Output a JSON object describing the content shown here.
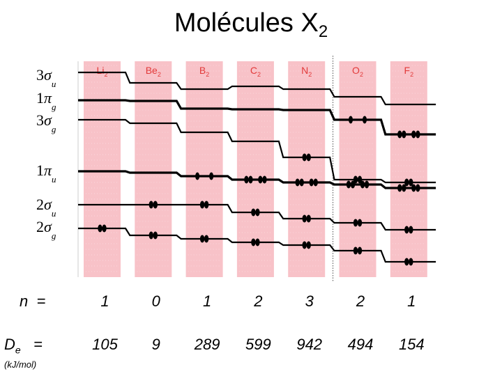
{
  "title": {
    "text": "Molécules X",
    "subscript": "2"
  },
  "molecules": [
    {
      "label": "Li",
      "sub": "2",
      "n": "1",
      "De": "105",
      "occ": {
        "2sg": 2,
        "2su": 0,
        "1pu": 0,
        "3sg": 0,
        "1pg": 0,
        "3su": 0
      }
    },
    {
      "label": "Be",
      "sub": "2",
      "n": "0",
      "De": "9",
      "occ": {
        "2sg": 2,
        "2su": 2,
        "1pu": 0,
        "3sg": 0,
        "1pg": 0,
        "3su": 0
      }
    },
    {
      "label": "B",
      "sub": "2",
      "n": "1",
      "De": "289",
      "occ": {
        "2sg": 2,
        "2su": 2,
        "1pu": 2,
        "3sg": 0,
        "1pg": 0,
        "3su": 0
      }
    },
    {
      "label": "C",
      "sub": "2",
      "n": "2",
      "De": "599",
      "occ": {
        "2sg": 2,
        "2su": 2,
        "1pu": 4,
        "3sg": 0,
        "1pg": 0,
        "3su": 0
      }
    },
    {
      "label": "N",
      "sub": "2",
      "n": "3",
      "De": "942",
      "occ": {
        "2sg": 2,
        "2su": 2,
        "1pu": 4,
        "3sg": 2,
        "1pg": 0,
        "3su": 0
      }
    },
    {
      "label": "O",
      "sub": "2",
      "n": "2",
      "De": "494",
      "occ": {
        "2sg": 2,
        "2su": 2,
        "1pu": 4,
        "3sg": 2,
        "1pg": 2,
        "3su": 0
      }
    },
    {
      "label": "F",
      "sub": "2",
      "n": "1",
      "De": "154",
      "occ": {
        "2sg": 2,
        "2su": 2,
        "1pu": 4,
        "3sg": 2,
        "1pg": 4,
        "3su": 0
      }
    }
  ],
  "orbital_labels": [
    {
      "id": "3su",
      "num": "3",
      "sym": "σ",
      "sub": "u"
    },
    {
      "id": "1pg",
      "num": "1",
      "sym": "π",
      "sub": "g"
    },
    {
      "id": "3sg",
      "num": "3",
      "sym": "σ",
      "sub": "g"
    },
    {
      "id": "1pu",
      "num": "1",
      "sym": "π",
      "sub": "u"
    },
    {
      "id": "2su",
      "num": "2",
      "sym": "σ",
      "sub": "u"
    },
    {
      "id": "2sg",
      "num": "2",
      "sym": "σ",
      "sub": "g"
    }
  ],
  "row_labels": {
    "n": "n",
    "n_eq": "=",
    "De": "D",
    "De_sub": "e",
    "De_eq": "=",
    "unit": "(kJ/mol)"
  },
  "colors": {
    "column": "#f8c2c8",
    "label": "#e23a3a",
    "level": "#000000",
    "background": "#ffffff"
  }
}
